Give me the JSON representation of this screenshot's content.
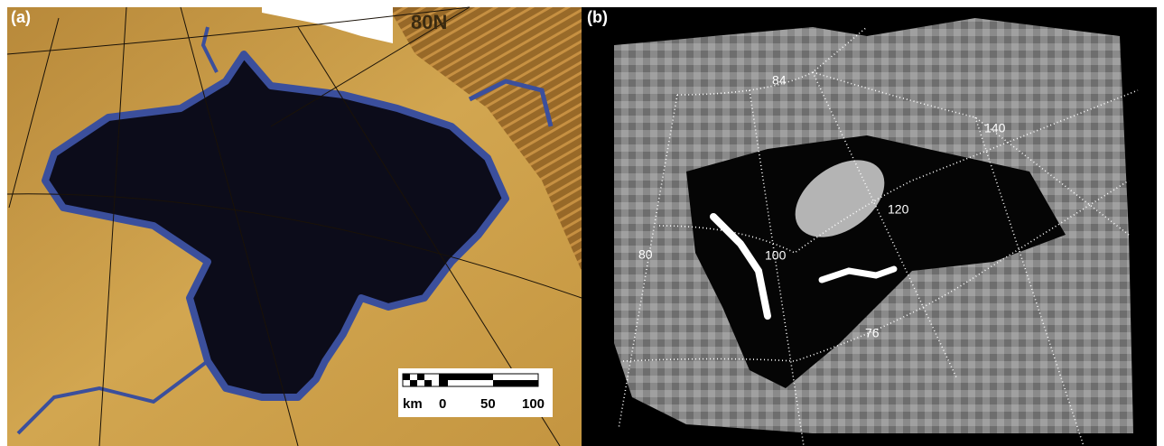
{
  "panels": [
    {
      "label": "(a)",
      "annotations": [
        "80N"
      ],
      "scale_bar": {
        "unit": "km",
        "ticks": [
          "0",
          "50",
          "100"
        ]
      }
    },
    {
      "label": "(b)",
      "annotations": [
        "84",
        "140",
        "120",
        "100",
        "80",
        "76"
      ]
    }
  ]
}
